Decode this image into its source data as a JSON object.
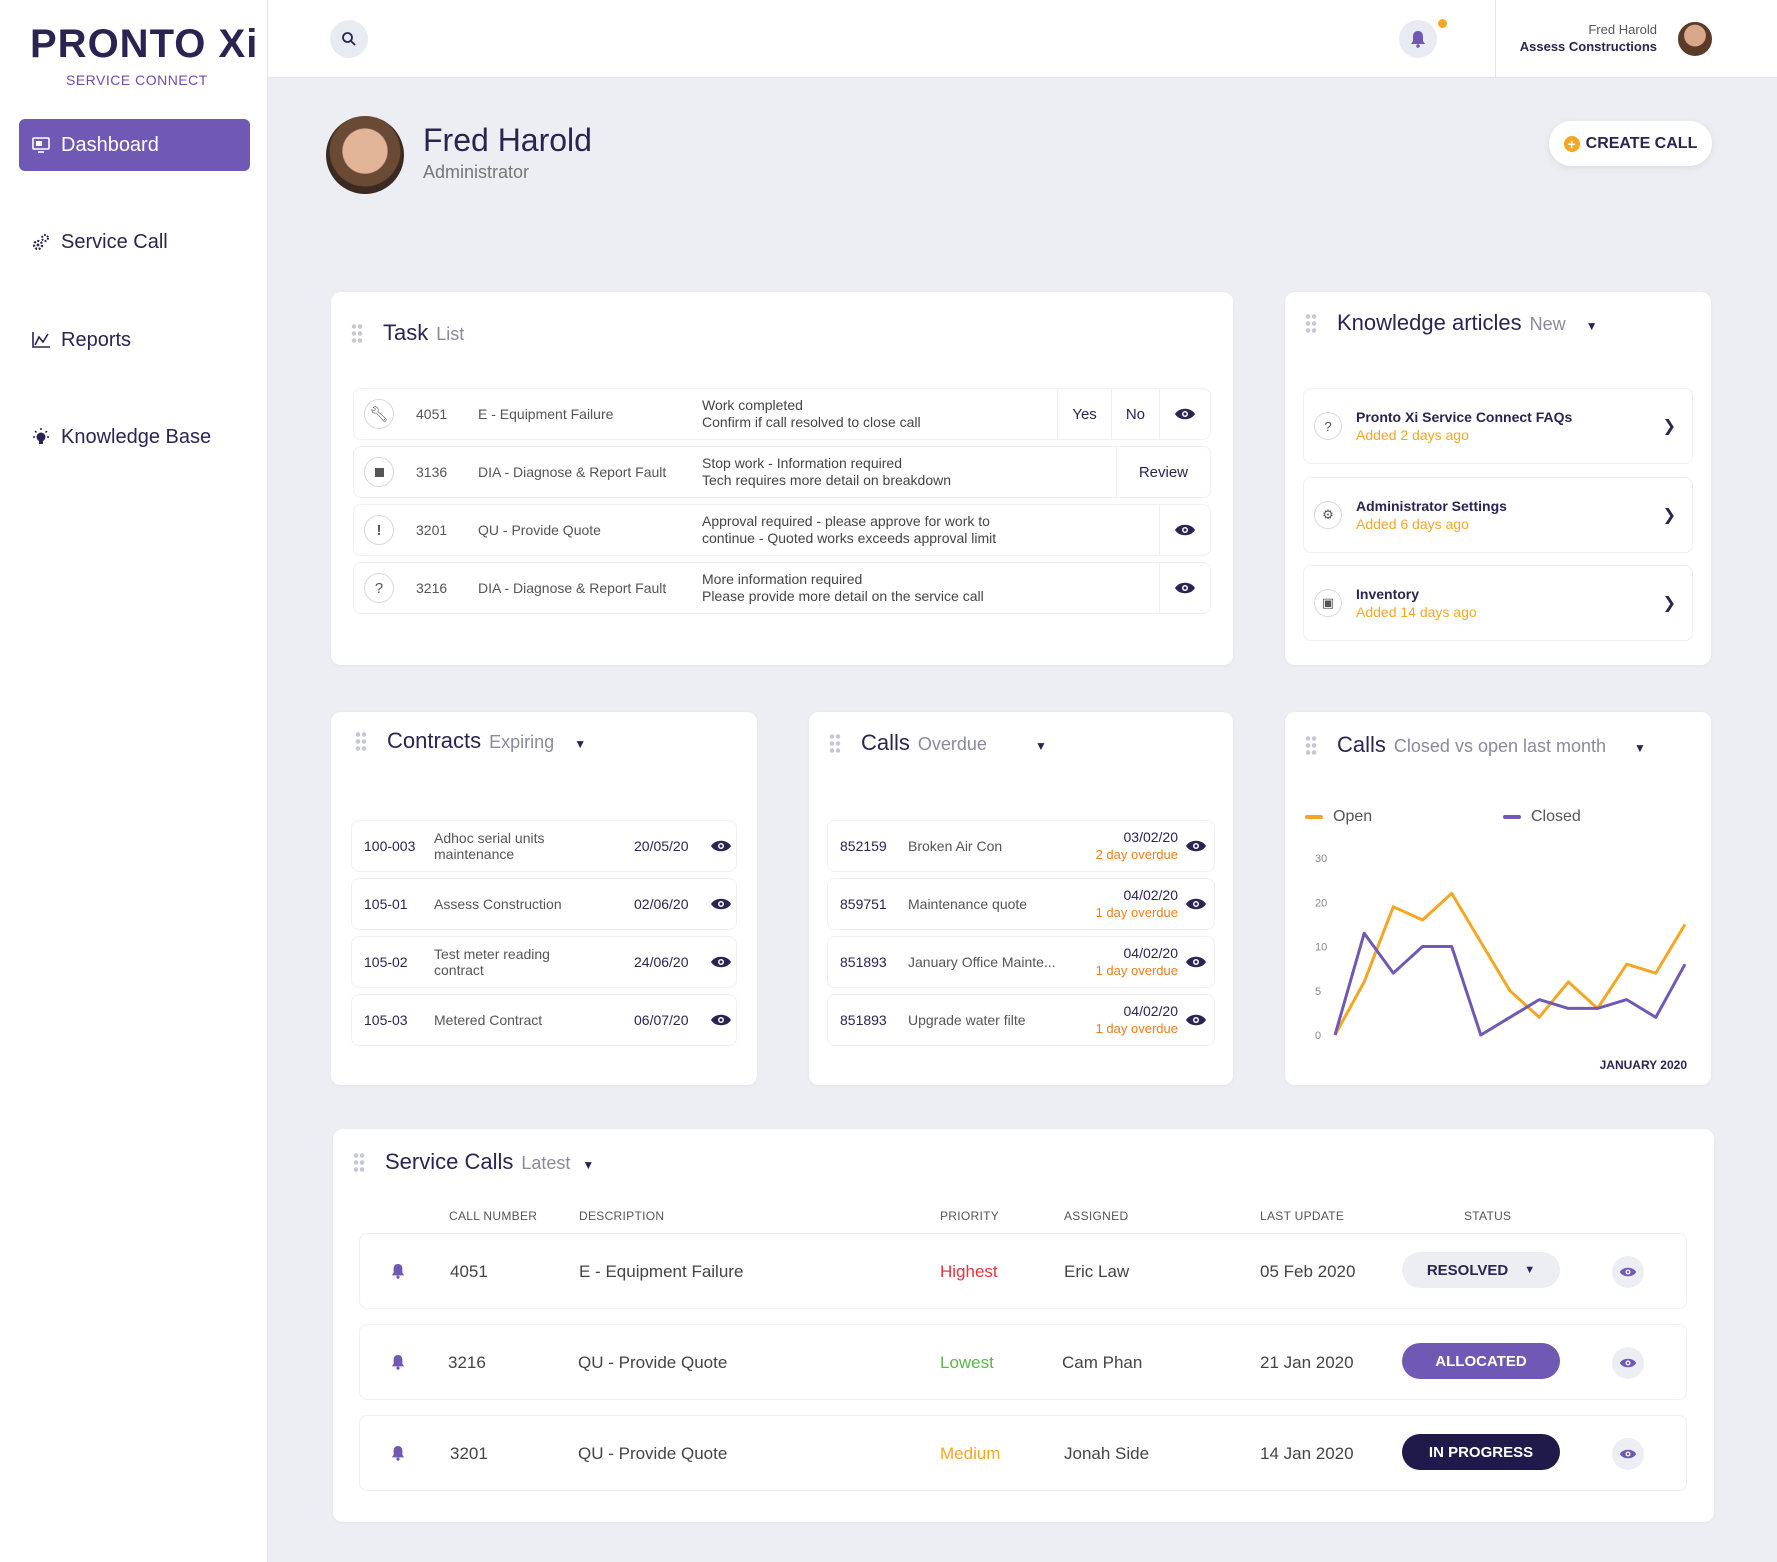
{
  "brand": {
    "name": "PRONTO",
    "name_suffix": "Xi",
    "tagline": "SERVICE CONNECT"
  },
  "sidebar": {
    "items": [
      {
        "label": "Dashboard",
        "icon": "monitor-icon",
        "active": true
      },
      {
        "label": "Service Call",
        "icon": "gears-icon",
        "active": false
      },
      {
        "label": "Reports",
        "icon": "chart-icon",
        "active": false
      },
      {
        "label": "Knowledge Base",
        "icon": "lightbulb-icon",
        "active": false
      }
    ]
  },
  "topbar": {
    "user_name": "Fred Harold",
    "company": "Assess Constructions",
    "notification_dot_color": "#f5a623"
  },
  "profile": {
    "name": "Fred Harold",
    "role": "Administrator"
  },
  "create_call_label": "CREATE CALL",
  "task_list": {
    "title": "Task",
    "subtitle": "List",
    "rows": [
      {
        "icon": "wrench-icon",
        "number": "4051",
        "type": "E - Equipment Failure",
        "msg1": "Work completed",
        "msg2": "Confirm if call resolved to close call",
        "actions": [
          "Yes",
          "No"
        ],
        "view": true
      },
      {
        "icon": "stop-icon",
        "number": "3136",
        "type": "DIA - Diagnose & Report Fault",
        "msg1": "Stop work - Information required",
        "msg2": "Tech requires more detail on breakdown",
        "actions": [
          "Review"
        ],
        "view": false
      },
      {
        "icon": "exclamation-icon",
        "number": "3201",
        "type": "QU - Provide Quote",
        "msg1": "Approval required - please approve for work to",
        "msg2": "continue - Quoted works exceeds approval limit",
        "actions": [],
        "view": true
      },
      {
        "icon": "question-icon",
        "number": "3216",
        "type": "DIA - Diagnose & Report Fault",
        "msg1": "More information required",
        "msg2": "Please provide more detail on the  service call",
        "actions": [],
        "view": true
      }
    ]
  },
  "knowledge": {
    "title": "Knowledge articles",
    "subtitle": "New",
    "items": [
      {
        "icon": "question-icon",
        "title": "Pronto Xi Service Connect FAQs",
        "date": "Added 2 days ago"
      },
      {
        "icon": "gear-icon",
        "title": "Administrator Settings",
        "date": "Added 6 days ago"
      },
      {
        "icon": "box-icon",
        "title": "Inventory",
        "date": "Added 14 days ago"
      }
    ]
  },
  "contracts": {
    "title": "Contracts",
    "subtitle": "Expiring",
    "rows": [
      {
        "number": "100-003",
        "desc1": "Adhoc serial units",
        "desc2": "maintenance",
        "date": "20/05/20"
      },
      {
        "number": "105-01",
        "desc1": "Assess Construction",
        "desc2": "",
        "date": "02/06/20"
      },
      {
        "number": "105-02",
        "desc1": "Test meter reading",
        "desc2": "contract",
        "date": "24/06/20"
      },
      {
        "number": "105-03",
        "desc1": "Metered Contract",
        "desc2": "",
        "date": "06/07/20"
      }
    ]
  },
  "calls_overdue": {
    "title": "Calls",
    "subtitle": "Overdue",
    "rows": [
      {
        "number": "852159",
        "desc": "Broken Air Con",
        "date": "03/02/20",
        "overdue": "2 day overdue"
      },
      {
        "number": "859751",
        "desc": "Maintenance quote",
        "date": "04/02/20",
        "overdue": "1 day overdue"
      },
      {
        "number": "851893",
        "desc": "January Office Mainte...",
        "date": "04/02/20",
        "overdue": "1 day overdue"
      },
      {
        "number": "851893",
        "desc": "Upgrade water filte",
        "date": "04/02/20",
        "overdue": "1 day overdue"
      }
    ]
  },
  "calls_chart": {
    "title": "Calls",
    "subtitle": "Closed  vs open last month"
  },
  "chart_data": {
    "type": "line",
    "xlabel": "JANUARY 2020",
    "ylabel": "",
    "y_ticks": [
      "0",
      "5",
      "10",
      "20",
      "30"
    ],
    "ylim": [
      0,
      30
    ],
    "legend_position": "top",
    "series": [
      {
        "name": "Open",
        "color": "#f5a623",
        "values": [
          0,
          6,
          19,
          16,
          22,
          11,
          5,
          2,
          6,
          3,
          8,
          7,
          15
        ]
      },
      {
        "name": "Closed",
        "color": "#7059b4",
        "values": [
          0,
          13,
          7,
          10,
          10,
          0,
          2,
          4,
          3,
          3,
          4,
          2,
          8
        ]
      }
    ]
  },
  "service_calls": {
    "title": "Service Calls",
    "subtitle": "Latest",
    "columns": [
      "CALL NUMBER",
      "DESCRIPTION",
      "PRIORITY",
      "ASSIGNED",
      "LAST UPDATE",
      "STATUS"
    ],
    "rows": [
      {
        "number": "4051",
        "desc": "E - Equipment Failure",
        "priority": "Highest",
        "priority_color": "#e8343f",
        "assigned": "Eric Law",
        "updated": "05 Feb 2020",
        "status": "RESOLVED",
        "status_style": "resolved"
      },
      {
        "number": "3216",
        "desc": "QU - Provide Quote",
        "priority": "Lowest",
        "priority_color": "#5bb54a",
        "assigned": "Cam Phan",
        "updated": "21 Jan 2020",
        "status": "ALLOCATED",
        "status_style": "allocated"
      },
      {
        "number": "3201",
        "desc": "QU - Provide Quote",
        "priority": "Medium",
        "priority_color": "#f5a623",
        "assigned": "Jonah Side",
        "updated": "14 Jan 2020",
        "status": "IN PROGRESS",
        "status_style": "inprogress"
      }
    ]
  }
}
